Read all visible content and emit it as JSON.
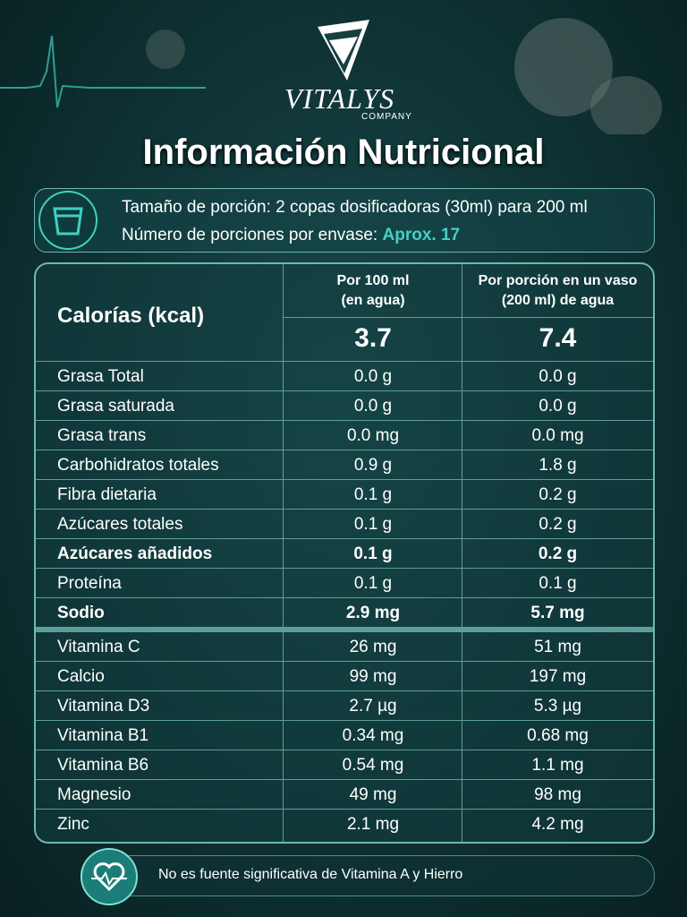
{
  "brand": {
    "name": "VITALYS",
    "sub": "COMPANY"
  },
  "title": "Información Nutricional",
  "serving": {
    "size": "Tamaño de porción: 2 copas dosificadoras (30ml) para 200 ml",
    "count_label": "Número de porciones por envase:",
    "count_value": "Aprox. 17"
  },
  "table": {
    "header": {
      "label": "Calorías (kcal)",
      "col1": [
        "Por 100 ml",
        "(en agua)"
      ],
      "col2": [
        "Por porción en un vaso",
        "(200 ml) de agua"
      ],
      "calories": [
        "3.7",
        "7.4"
      ]
    },
    "nutrients": [
      {
        "name": "Grasa Total",
        "per100": "0.0 g",
        "serving": "0.0 g",
        "bold": false
      },
      {
        "name": "Grasa saturada",
        "per100": "0.0 g",
        "serving": "0.0 g",
        "bold": false
      },
      {
        "name": "Grasa trans",
        "per100": "0.0 mg",
        "serving": "0.0 mg",
        "bold": false
      },
      {
        "name": "Carbohidratos totales",
        "per100": "0.9 g",
        "serving": "1.8 g",
        "bold": false
      },
      {
        "name": "Fibra dietaria",
        "per100": "0.1 g",
        "serving": "0.2 g",
        "bold": false
      },
      {
        "name": "Azúcares totales",
        "per100": "0.1 g",
        "serving": "0.2 g",
        "bold": false
      },
      {
        "name": "Azúcares añadidos",
        "per100": "0.1 g",
        "serving": "0.2 g",
        "bold": true
      },
      {
        "name": "Proteína",
        "per100": "0.1 g",
        "serving": "0.1 g",
        "bold": false
      },
      {
        "name": "Sodio",
        "per100": "2.9 mg",
        "serving": "5.7 mg",
        "bold": true
      }
    ],
    "vitamins": [
      {
        "name": "Vitamina C",
        "per100": "26 mg",
        "serving": "51 mg",
        "bold": false
      },
      {
        "name": "Calcio",
        "per100": "99 mg",
        "serving": "197 mg",
        "bold": false
      },
      {
        "name": "Vitamina D3",
        "per100": "2.7 µg",
        "serving": "5.3 µg",
        "bold": false
      },
      {
        "name": "Vitamina B1",
        "per100": "0.34 mg",
        "serving": "0.68 mg",
        "bold": false
      },
      {
        "name": "Vitamina B6",
        "per100": "0.54 mg",
        "serving": "1.1 mg",
        "bold": false
      },
      {
        "name": "Magnesio",
        "per100": "49 mg",
        "serving": "98 mg",
        "bold": false
      },
      {
        "name": "Zinc",
        "per100": "2.1 mg",
        "serving": "4.2 mg",
        "bold": false
      }
    ]
  },
  "footnote": "No es fuente significativa de Vitamina A y Hierro"
}
